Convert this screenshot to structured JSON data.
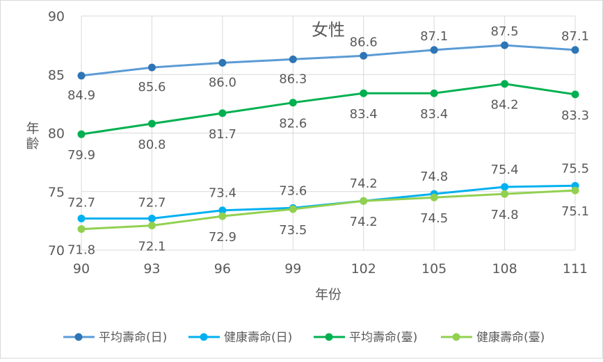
{
  "chart_data": {
    "type": "line",
    "title": "女性",
    "xlabel": "年份",
    "ylabel": "年齡",
    "categories": [
      "90",
      "93",
      "96",
      "99",
      "102",
      "105",
      "108",
      "111"
    ],
    "ylim": [
      70,
      90
    ],
    "yticks": [
      "70",
      "75",
      "80",
      "85",
      "90"
    ],
    "grid": true,
    "legend_position": "bottom",
    "series": [
      {
        "name": "平均壽命(日)",
        "color": "#2E75B6",
        "line_color": "#5B9BD5",
        "values": [
          84.9,
          85.6,
          86.0,
          86.3,
          86.6,
          87.1,
          87.5,
          87.1
        ],
        "labels": [
          "84.9",
          "85.6",
          "86.0",
          "86.3",
          "86.6",
          "87.1",
          "87.5",
          "87.1"
        ]
      },
      {
        "name": "健康壽命(日)",
        "color": "#00B0F0",
        "line_color": "#00B0F0",
        "values": [
          72.7,
          72.7,
          73.4,
          73.6,
          74.2,
          74.8,
          75.4,
          75.5
        ],
        "labels": [
          "72.7",
          "72.7",
          "73.4",
          "73.6",
          "74.2",
          "74.8",
          "75.4",
          "75.5"
        ]
      },
      {
        "name": "平均壽命(臺)",
        "color": "#00B050",
        "line_color": "#00B050",
        "values": [
          79.9,
          80.8,
          81.7,
          82.6,
          83.4,
          83.4,
          84.2,
          83.3
        ],
        "labels": [
          "79.9",
          "80.8",
          "81.7",
          "82.6",
          "83.4",
          "83.4",
          "84.2",
          "83.3"
        ]
      },
      {
        "name": "健康壽命(臺)",
        "color": "#92D050",
        "line_color": "#92D050",
        "values": [
          71.8,
          72.1,
          72.9,
          73.5,
          74.2,
          74.5,
          74.8,
          75.1
        ],
        "labels": [
          "71.8",
          "72.1",
          "72.9",
          "73.5",
          "74.2",
          "74.5",
          "74.8",
          "75.1"
        ]
      }
    ]
  }
}
